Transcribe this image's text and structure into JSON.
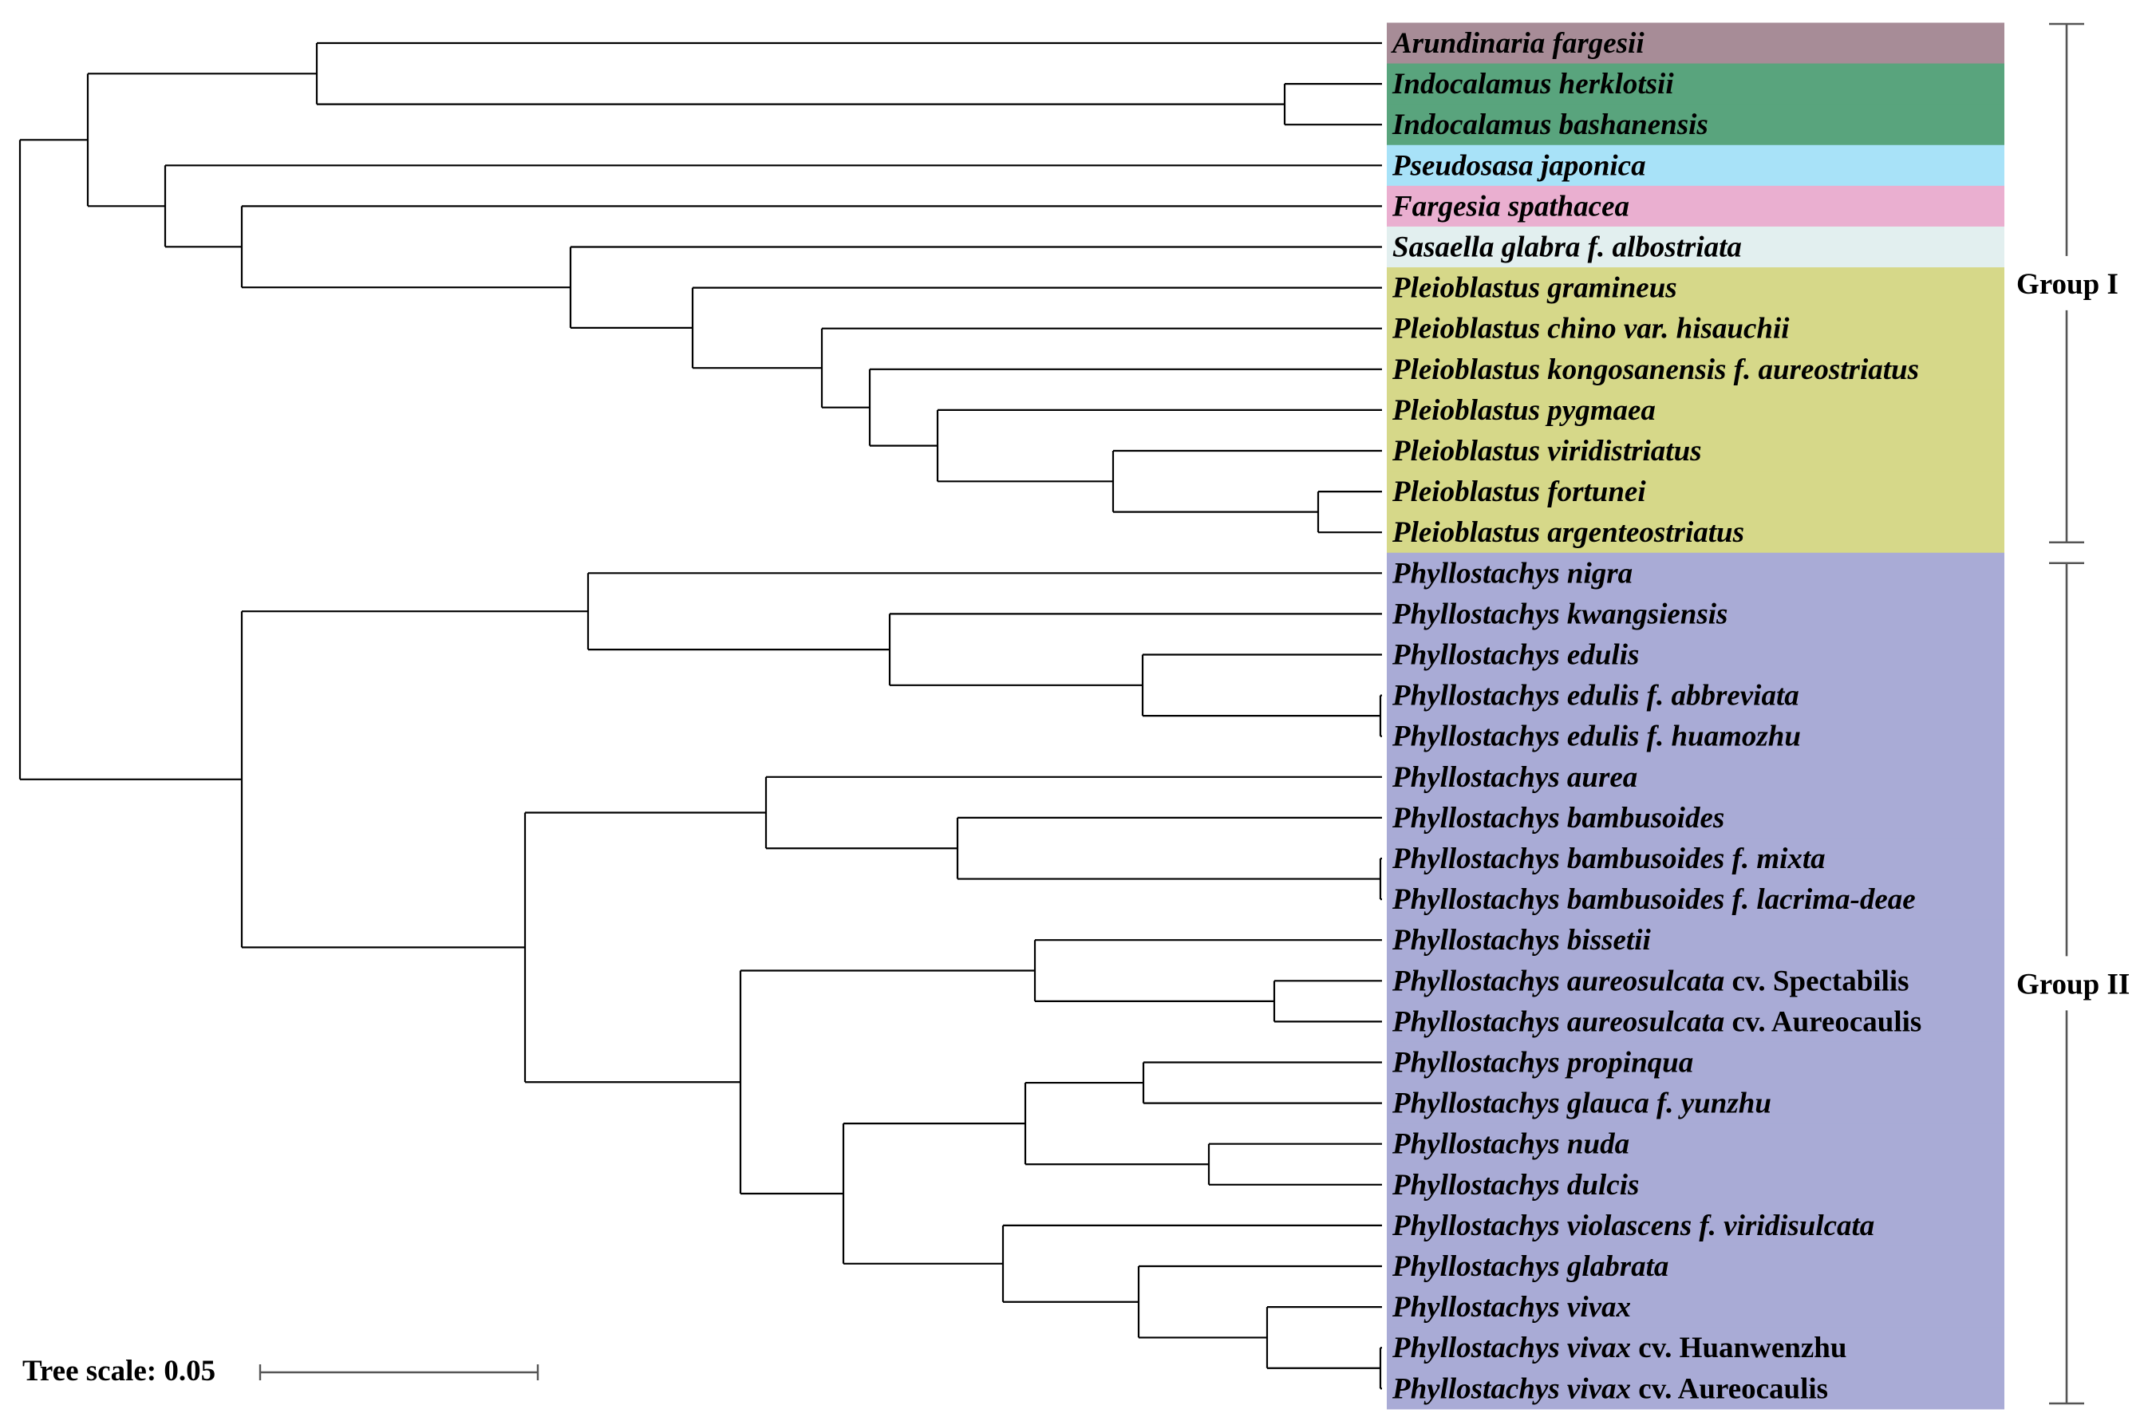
{
  "leaves": [
    {
      "name": "Arundinaria fargesii",
      "italic_part": "Arundinaria fargesii",
      "normal_part": "",
      "bg": "#A78C97"
    },
    {
      "name": "Indocalamus herklotsii",
      "italic_part": "Indocalamus herklotsii",
      "normal_part": "",
      "bg": "#59A47D"
    },
    {
      "name": "Indocalamus bashanensis",
      "italic_part": "Indocalamus bashanensis",
      "normal_part": "",
      "bg": "#59A47D"
    },
    {
      "name": "Pseudosasa japonica",
      "italic_part": "Pseudosasa japonica",
      "normal_part": "",
      "bg": "#A8E2F8"
    },
    {
      "name": "Fargesia spathacea",
      "italic_part": "Fargesia spathacea",
      "normal_part": "",
      "bg": "#EAAFD0"
    },
    {
      "name": "Sasaella glabra f. albostriata",
      "italic_part": "Sasaella glabra f. albostriata",
      "normal_part": "",
      "bg": "#E2EFEF"
    },
    {
      "name": "Pleioblastus gramineus",
      "italic_part": "Pleioblastus gramineus",
      "normal_part": "",
      "bg": "#D6D889"
    },
    {
      "name": "Pleioblastus chino var. hisauchii",
      "italic_part": "Pleioblastus chino var. hisauchii",
      "normal_part": "",
      "bg": "#D6D889"
    },
    {
      "name": "Pleioblastus kongosanensis f. aureostriatus",
      "italic_part": "Pleioblastus kongosanensis f. aureostriatus",
      "normal_part": "",
      "bg": "#D6D889"
    },
    {
      "name": "Pleioblastus pygmaea",
      "italic_part": "Pleioblastus pygmaea",
      "normal_part": "",
      "bg": "#D6D889"
    },
    {
      "name": "Pleioblastus viridistriatus",
      "italic_part": "Pleioblastus viridistriatus",
      "normal_part": "",
      "bg": "#D6D889"
    },
    {
      "name": "Pleioblastus fortunei",
      "italic_part": "Pleioblastus fortunei",
      "normal_part": "",
      "bg": "#D6D889"
    },
    {
      "name": "Pleioblastus argenteostriatus",
      "italic_part": "Pleioblastus argenteostriatus",
      "normal_part": "",
      "bg": "#D6D889"
    },
    {
      "name": "Phyllostachys nigra",
      "italic_part": "Phyllostachys nigra",
      "normal_part": "",
      "bg": "#A9ABD6"
    },
    {
      "name": "Phyllostachys kwangsiensis",
      "italic_part": "Phyllostachys kwangsiensis",
      "normal_part": "",
      "bg": "#A9ABD6"
    },
    {
      "name": "Phyllostachys edulis",
      "italic_part": "Phyllostachys edulis",
      "normal_part": "",
      "bg": "#A9ABD6"
    },
    {
      "name": "Phyllostachys edulis f. abbreviata",
      "italic_part": "Phyllostachys edulis f. abbreviata",
      "normal_part": "",
      "bg": "#A9ABD6"
    },
    {
      "name": "Phyllostachys edulis f. huamozhu",
      "italic_part": "Phyllostachys edulis f. huamozhu",
      "normal_part": "",
      "bg": "#A9ABD6"
    },
    {
      "name": "Phyllostachys aurea",
      "italic_part": "Phyllostachys aurea",
      "normal_part": "",
      "bg": "#A9ABD6"
    },
    {
      "name": "Phyllostachys bambusoides",
      "italic_part": "Phyllostachys bambusoides",
      "normal_part": "",
      "bg": "#A9ABD6"
    },
    {
      "name": "Phyllostachys bambusoides f. mixta",
      "italic_part": "Phyllostachys bambusoides f. mixta",
      "normal_part": "",
      "bg": "#A9ABD6"
    },
    {
      "name": "Phyllostachys bambusoides f. lacrima-deae",
      "italic_part": "Phyllostachys bambusoides f. lacrima-deae",
      "normal_part": "",
      "bg": "#A9ABD6"
    },
    {
      "name": "Phyllostachys bissetii",
      "italic_part": "Phyllostachys bissetii",
      "normal_part": "",
      "bg": "#A9ABD6"
    },
    {
      "name": "Phyllostachys aureosulcata cv. Spectabilis",
      "italic_part": "Phyllostachys aureosulcata",
      "normal_part": " cv. Spectabilis",
      "bg": "#A9ABD6"
    },
    {
      "name": "Phyllostachys aureosulcata cv. Aureocaulis",
      "italic_part": "Phyllostachys aureosulcata",
      "normal_part": " cv. Aureocaulis",
      "bg": "#A9ABD6"
    },
    {
      "name": "Phyllostachys propinqua",
      "italic_part": "Phyllostachys propinqua",
      "normal_part": "",
      "bg": "#A9ABD6"
    },
    {
      "name": "Phyllostachys glauca f. yunzhu",
      "italic_part": "Phyllostachys glauca f. yunzhu",
      "normal_part": "",
      "bg": "#A9ABD6"
    },
    {
      "name": "Phyllostachys nuda",
      "italic_part": "Phyllostachys nuda",
      "normal_part": "",
      "bg": "#A9ABD6"
    },
    {
      "name": "Phyllostachys dulcis",
      "italic_part": "Phyllostachys dulcis",
      "normal_part": "",
      "bg": "#A9ABD6"
    },
    {
      "name": "Phyllostachys violascens f. viridisulcata",
      "italic_part": "Phyllostachys violascens f. viridisulcata",
      "normal_part": "",
      "bg": "#A9ABD6"
    },
    {
      "name": "Phyllostachys glabrata",
      "italic_part": "Phyllostachys glabrata",
      "normal_part": "",
      "bg": "#A9ABD6"
    },
    {
      "name": "Phyllostachys vivax",
      "italic_part": "Phyllostachys vivax",
      "normal_part": "",
      "bg": "#A9ABD6"
    },
    {
      "name": "Phyllostachys vivax cv. Huanwenzhu",
      "italic_part": "Phyllostachys vivax",
      "normal_part": " cv. Huanwenzhu",
      "bg": "#A9ABD6"
    },
    {
      "name": "Phyllostachys vivax cv. Aureocaulis",
      "italic_part": "Phyllostachys vivax",
      "normal_part": " cv. Aureocaulis",
      "bg": "#A9ABD6"
    }
  ],
  "groups": [
    {
      "label": "Group I",
      "first_leaf": 0,
      "last_leaf": 12
    },
    {
      "label": "Group II",
      "first_leaf": 13,
      "last_leaf": 33
    }
  ],
  "tree_scale": {
    "label": "Tree scale: 0.05",
    "value": 0.05
  }
}
